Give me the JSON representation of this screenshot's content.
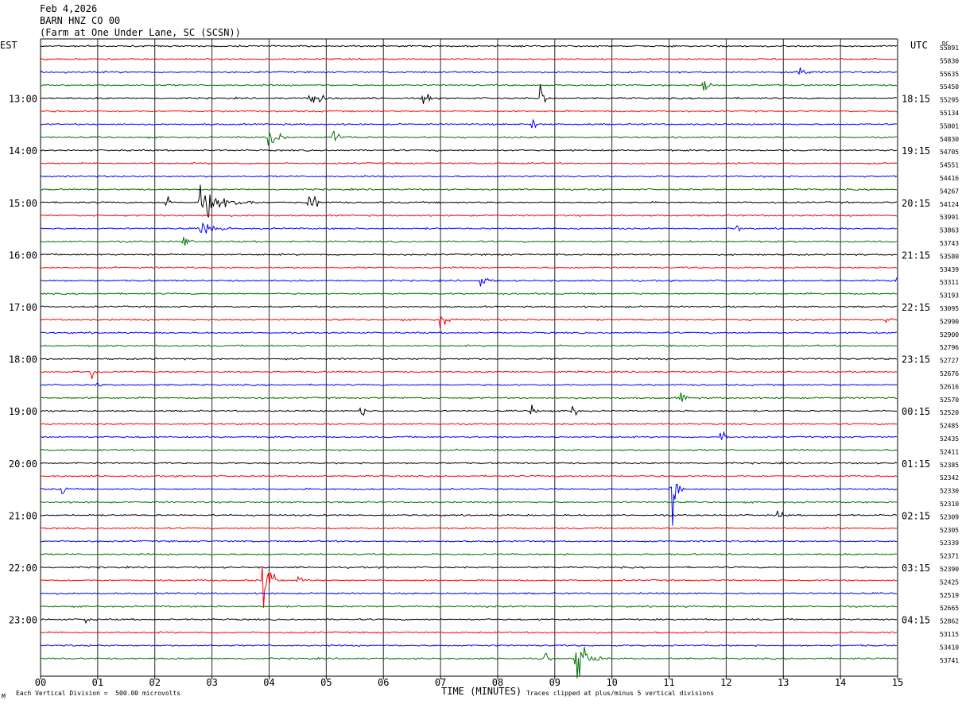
{
  "header": {
    "date": "Feb 4,2026",
    "station": "BARN HNZ CO 00",
    "location": "(Farm at One Under Lane, SC (SCSN))"
  },
  "footer": {
    "division": "Each Vertical Division =  500.00 microvolts",
    "clip_note": "Traces clipped at plus/minus 5 vertical divisions",
    "corner_mark": "M"
  },
  "chart_data": {
    "type": "line",
    "subtype": "helicorder",
    "xlabel": "TIME (MINUTES)",
    "x_ticks": [
      "00",
      "01",
      "02",
      "03",
      "04",
      "05",
      "06",
      "07",
      "08",
      "09",
      "10",
      "11",
      "12",
      "13",
      "14",
      "15"
    ],
    "xlim": [
      0,
      15
    ],
    "left_axis_label": "EST",
    "right_axis_label": "UTC",
    "dc_label": "DC",
    "left_hour_labels": [
      "13:00",
      "14:00",
      "15:00",
      "16:00",
      "17:00",
      "18:00",
      "19:00",
      "20:00",
      "21:00",
      "22:00",
      "23:00"
    ],
    "right_hour_labels": [
      "18:15",
      "19:15",
      "20:15",
      "21:15",
      "22:15",
      "23:15",
      "00:15",
      "01:15",
      "02:15",
      "03:15",
      "04:15"
    ],
    "label_first_row": 4,
    "label_row_step": 4,
    "row_colors": [
      "#000000",
      "#ff0000",
      "#0000ff",
      "#007000"
    ],
    "dc_values": [
      55891,
      55830,
      55635,
      55450,
      55295,
      55134,
      55001,
      54830,
      54705,
      54551,
      54416,
      54267,
      54124,
      53991,
      53863,
      53743,
      53580,
      53439,
      53311,
      53193,
      53095,
      52990,
      52900,
      52796,
      52727,
      52676,
      52616,
      52570,
      52520,
      52485,
      52435,
      52411,
      52385,
      52342,
      52330,
      52310,
      52309,
      52305,
      52339,
      52371,
      52390,
      52425,
      52519,
      52665,
      52862,
      53115,
      53410,
      53741
    ],
    "events": [
      {
        "row": 2,
        "minute": 13.3,
        "amp": 1.0,
        "dur": 0.2
      },
      {
        "row": 3,
        "minute": 11.6,
        "amp": 1.6,
        "dur": 0.2
      },
      {
        "row": 4,
        "minute": 4.7,
        "amp": 0.8,
        "dur": 0.6
      },
      {
        "row": 4,
        "minute": 6.7,
        "amp": 1.0,
        "dur": 0.2
      },
      {
        "row": 4,
        "minute": 8.75,
        "amp": 1.6,
        "dur": 0.15
      },
      {
        "row": 6,
        "minute": 8.6,
        "amp": 0.8,
        "dur": 0.2
      },
      {
        "row": 7,
        "minute": 4.0,
        "amp": 1.2,
        "dur": 0.4
      },
      {
        "row": 7,
        "minute": 5.1,
        "amp": 0.8,
        "dur": 0.4
      },
      {
        "row": 12,
        "minute": 2.2,
        "amp": 1.2,
        "dur": 0.15
      },
      {
        "row": 12,
        "minute": 2.8,
        "amp": 1.8,
        "dur": 1.0
      },
      {
        "row": 12,
        "minute": 4.7,
        "amp": 1.4,
        "dur": 0.3
      },
      {
        "row": 14,
        "minute": 2.8,
        "amp": 1.0,
        "dur": 0.6
      },
      {
        "row": 14,
        "minute": 12.2,
        "amp": 0.9,
        "dur": 0.15
      },
      {
        "row": 15,
        "minute": 2.5,
        "amp": 0.8,
        "dur": 0.2
      },
      {
        "row": 18,
        "minute": 7.7,
        "amp": 0.8,
        "dur": 0.3
      },
      {
        "row": 18,
        "minute": 15.0,
        "amp": 1.0,
        "dur": 0.1
      },
      {
        "row": 21,
        "minute": 7.0,
        "amp": 0.8,
        "dur": 0.3
      },
      {
        "row": 21,
        "minute": 14.8,
        "amp": 0.8,
        "dur": 0.15
      },
      {
        "row": 25,
        "minute": 0.9,
        "amp": 0.7,
        "dur": 0.15
      },
      {
        "row": 26,
        "minute": 1.0,
        "amp": 0.8,
        "dur": 0.1
      },
      {
        "row": 27,
        "minute": 11.2,
        "amp": 1.0,
        "dur": 0.2
      },
      {
        "row": 28,
        "minute": 5.6,
        "amp": 0.9,
        "dur": 0.2
      },
      {
        "row": 28,
        "minute": 8.6,
        "amp": 0.8,
        "dur": 0.2
      },
      {
        "row": 28,
        "minute": 9.3,
        "amp": 1.4,
        "dur": 0.15
      },
      {
        "row": 30,
        "minute": 11.9,
        "amp": 1.2,
        "dur": 0.2
      },
      {
        "row": 34,
        "minute": 0.4,
        "amp": 1.2,
        "dur": 0.1
      },
      {
        "row": 34,
        "minute": 11.05,
        "amp": 4.0,
        "dur": 0.2
      },
      {
        "row": 36,
        "minute": 12.9,
        "amp": 0.8,
        "dur": 0.2
      },
      {
        "row": 41,
        "minute": 3.9,
        "amp": 3.0,
        "dur": 0.3
      },
      {
        "row": 41,
        "minute": 4.5,
        "amp": 0.6,
        "dur": 0.3
      },
      {
        "row": 44,
        "minute": 0.8,
        "amp": 0.8,
        "dur": 0.1
      },
      {
        "row": 47,
        "minute": 9.35,
        "amp": 3.0,
        "dur": 0.5
      },
      {
        "row": 47,
        "minute": 8.8,
        "amp": 0.9,
        "dur": 0.3
      }
    ]
  }
}
